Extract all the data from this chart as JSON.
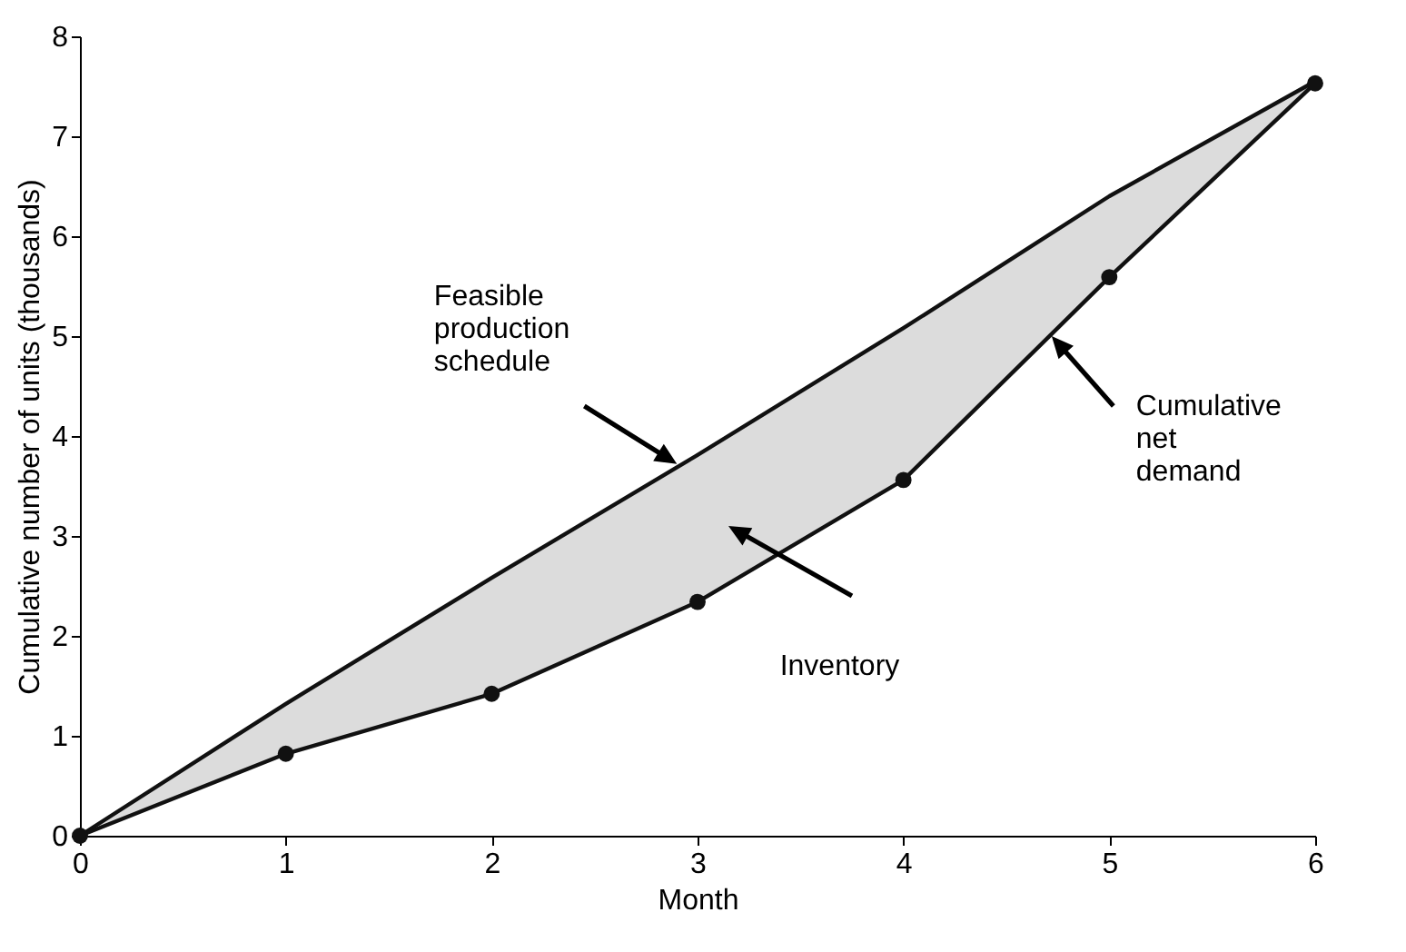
{
  "chart_data": {
    "type": "line",
    "xlabel": "Month",
    "ylabel": "Cumulative number of units (thousands)",
    "x": [
      0,
      1,
      2,
      3,
      4,
      5,
      6
    ],
    "series": [
      {
        "color": "#111111",
        "marker": "none",
        "values": [
          0,
          1.32,
          2.58,
          3.81,
          5.08,
          6.4,
          7.55
        ],
        "lower": [
          0,
          0.82,
          1.42,
          2.34,
          3.56,
          5.59,
          7.53
        ],
        "upper": [
          0,
          1.32,
          2.58,
          3.81,
          5.08,
          6.4,
          7.55
        ]
      },
      {
        "color": "#111111",
        "marker": "circle",
        "values": [
          0,
          0.82,
          1.42,
          2.34,
          3.56,
          5.59,
          7.53
        ]
      }
    ],
    "xlim": [
      0,
      6
    ],
    "xticks": [
      0,
      1,
      2,
      3,
      4,
      5,
      6
    ],
    "ylim": [
      0,
      8
    ],
    "yticks": [
      0,
      1,
      2,
      3,
      4,
      5,
      6,
      7,
      8
    ],
    "grid": false,
    "annotations": [
      "Feasible\nproduction\nschedule",
      "Inventory",
      "Cumulative\nnet\ndemand"
    ]
  }
}
